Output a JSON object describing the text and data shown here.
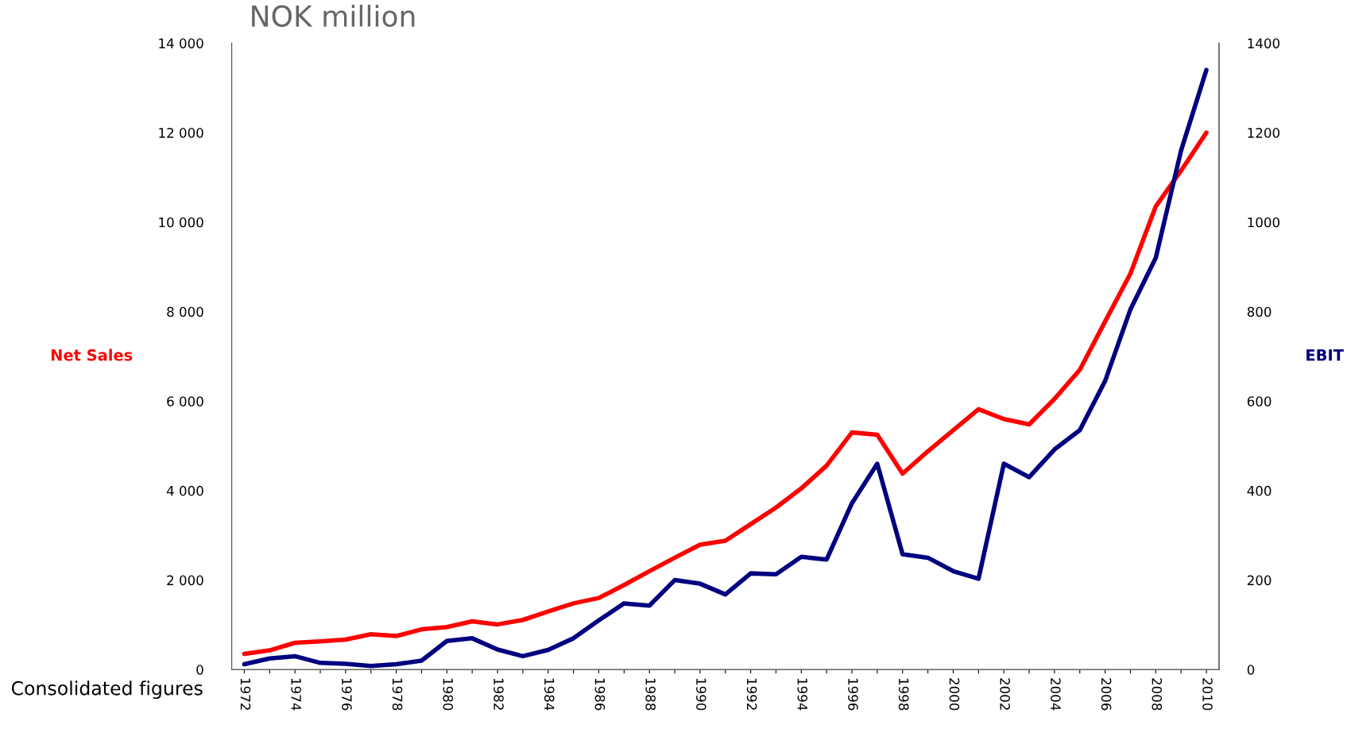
{
  "chart_data": {
    "type": "line",
    "title": "NOK million",
    "ylabel": "Net Sales",
    "y2label": "EBIT",
    "categories": [
      "1972",
      null,
      "1974",
      null,
      "1976",
      null,
      "1978",
      null,
      "1980",
      null,
      "1982",
      null,
      "1984",
      null,
      "1986",
      null,
      "1988",
      null,
      "1990",
      null,
      "1992",
      null,
      "1994",
      null,
      "1996",
      null,
      "1998",
      null,
      "2000",
      null,
      "2002",
      null,
      "2004",
      null,
      "2006",
      null,
      "2008",
      null,
      "2010"
    ],
    "series": [
      {
        "color": "#ff0000",
        "values": [
          350,
          430,
          600,
          630,
          670,
          790,
          750,
          900,
          950,
          1080,
          1010,
          1110,
          1300,
          1480,
          1600,
          1890,
          2200,
          2500,
          2790,
          2880,
          3250,
          3620,
          4050,
          4560,
          5300,
          5250,
          4380,
          4880,
          5350,
          5820,
          5600,
          5480,
          6050,
          6700,
          7780,
          8850,
          10350,
          11150,
          12000
        ]
      },
      {
        "color": "#000080",
        "axis": "y2",
        "values": [
          12,
          25,
          30,
          15,
          13,
          8,
          12,
          20,
          64,
          70,
          45,
          30,
          44,
          70,
          110,
          148,
          143,
          200,
          192,
          168,
          215,
          213,
          252,
          246,
          372,
          460,
          258,
          250,
          220,
          203,
          460,
          430,
          492,
          535,
          645,
          805,
          920,
          1160,
          1340
        ]
      }
    ],
    "ylim": [
      0,
      14000
    ],
    "yticks": [
      {
        "value": 0,
        "label": "0"
      },
      {
        "value": 2000,
        "label": "2 000"
      },
      {
        "value": 4000,
        "label": "4 000"
      },
      {
        "value": 6000,
        "label": "6 000"
      },
      {
        "value": 8000,
        "label": "8 000"
      },
      {
        "value": 10000,
        "label": "10 000"
      },
      {
        "value": 12000,
        "label": "12 000"
      },
      {
        "value": 14000,
        "label": "14 000"
      }
    ],
    "y2lim": [
      0,
      1400
    ],
    "y2ticks": [
      0,
      200,
      400,
      600,
      800,
      1000,
      1200,
      1400
    ],
    "grid": false,
    "legend": false,
    "marker": "none",
    "line_style": "solid",
    "annotations": [
      "Consolidated figures"
    ]
  }
}
